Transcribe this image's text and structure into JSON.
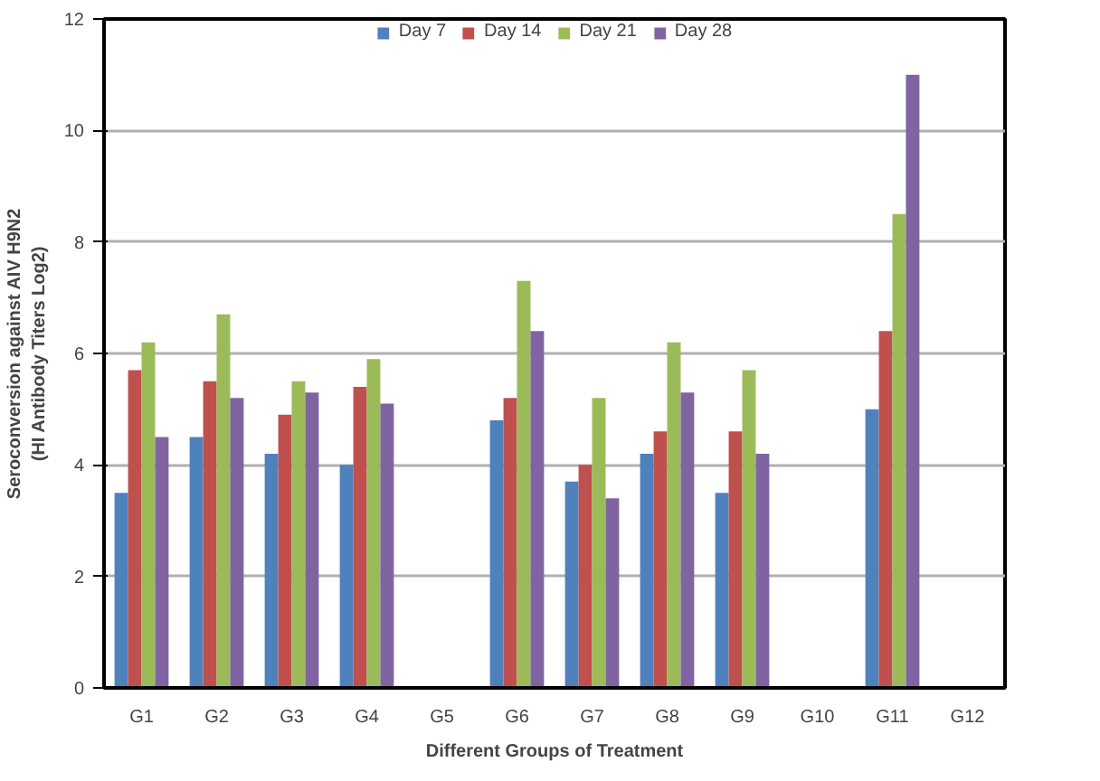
{
  "chart_data": {
    "type": "bar",
    "xlabel": "Different Groups of Treatment",
    "ylabel": "Seroconversion against AIV H9N2\n(HI Antibody Titers Log2)",
    "categories": [
      "G1",
      "G2",
      "G3",
      "G4",
      "G5",
      "G6",
      "G7",
      "G8",
      "G9",
      "G10",
      "G11",
      "G12"
    ],
    "series": [
      {
        "name": "Day 7",
        "color": "#4f81bd",
        "values": [
          3.5,
          4.5,
          4.2,
          4.0,
          0,
          4.8,
          3.7,
          4.2,
          3.5,
          0,
          5.0,
          0
        ]
      },
      {
        "name": "Day 14",
        "color": "#c0504d",
        "values": [
          5.7,
          5.5,
          4.9,
          5.4,
          0,
          5.2,
          4.0,
          4.6,
          4.6,
          0,
          6.4,
          0
        ]
      },
      {
        "name": "Day 21",
        "color": "#9bbb59",
        "values": [
          6.2,
          6.7,
          5.5,
          5.9,
          0,
          7.3,
          5.2,
          6.2,
          5.7,
          0,
          8.5,
          0
        ]
      },
      {
        "name": "Day 28",
        "color": "#8064a2",
        "values": [
          4.5,
          5.2,
          5.3,
          5.1,
          0,
          6.4,
          3.4,
          5.3,
          4.2,
          0,
          11.0,
          0
        ]
      }
    ],
    "ylim": [
      0,
      12
    ],
    "yticks": [
      0,
      2,
      4,
      6,
      8,
      10,
      12
    ],
    "grid": "y",
    "legend": "top"
  }
}
